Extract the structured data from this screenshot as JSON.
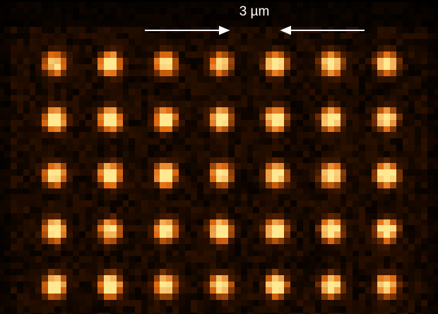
{
  "scale_bar": {
    "label": "3 µm",
    "color": "#ffffff"
  },
  "image": {
    "description_kind": "pixelated fluorescence micrograph",
    "grid": {
      "columns": 7,
      "rows": 5
    },
    "colormap": [
      "#000000",
      "#4a1c00",
      "#e06a10",
      "#ffe890"
    ]
  }
}
